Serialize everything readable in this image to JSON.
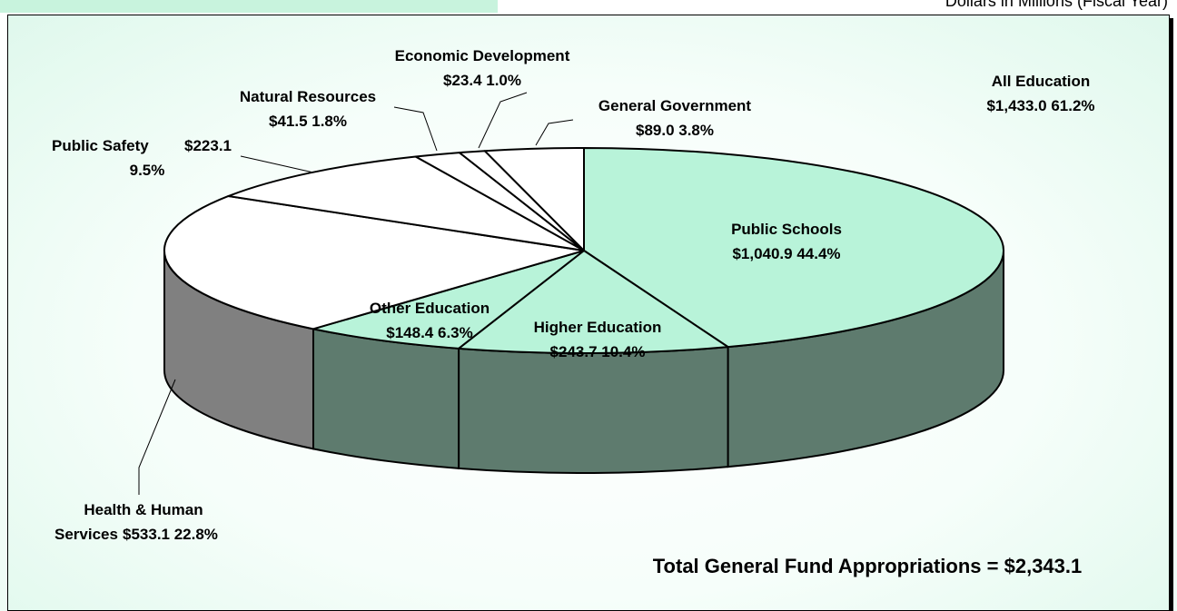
{
  "header": {
    "note": "Dollars in Millions (Fiscal Year)"
  },
  "colors": {
    "education": "#b8f3d9",
    "education_side": "#5e7b6e",
    "other": "#ffffff",
    "hhs_side": "#808080"
  },
  "chart_data": {
    "type": "pie",
    "title": "",
    "total_label": "Total General Fund Appropriations = $2,343.1",
    "slices": [
      {
        "name": "Public Schools",
        "value": 1040.9,
        "percent": 44.4,
        "label": "$1,040.9  44.4%"
      },
      {
        "name": "Higher Education",
        "value": 243.7,
        "percent": 10.4,
        "label": "$243.7  10.4%"
      },
      {
        "name": "Other Education",
        "value": 148.4,
        "percent": 6.3,
        "label": "$148.4  6.3%"
      },
      {
        "name": "Health & Human",
        "name2": "Services",
        "value": 533.1,
        "percent": 22.8,
        "label": "$533.1  22.8%"
      },
      {
        "name": "Public Safety",
        "value": 223.1,
        "percent": 9.5,
        "label": "$223.1",
        "label2": "9.5%"
      },
      {
        "name": "Natural Resources",
        "value": 41.5,
        "percent": 1.8,
        "label": "$41.5  1.8%"
      },
      {
        "name": "Economic Development",
        "value": 23.4,
        "percent": 1.0,
        "label": "$23.4  1.0%"
      },
      {
        "name": "General Government",
        "value": 89.0,
        "percent": 3.8,
        "label": "$89.0  3.8%"
      }
    ],
    "group": {
      "name": "All Education",
      "value": 1433.0,
      "percent": 61.2,
      "label": "$1,433.0  61.2%"
    }
  }
}
